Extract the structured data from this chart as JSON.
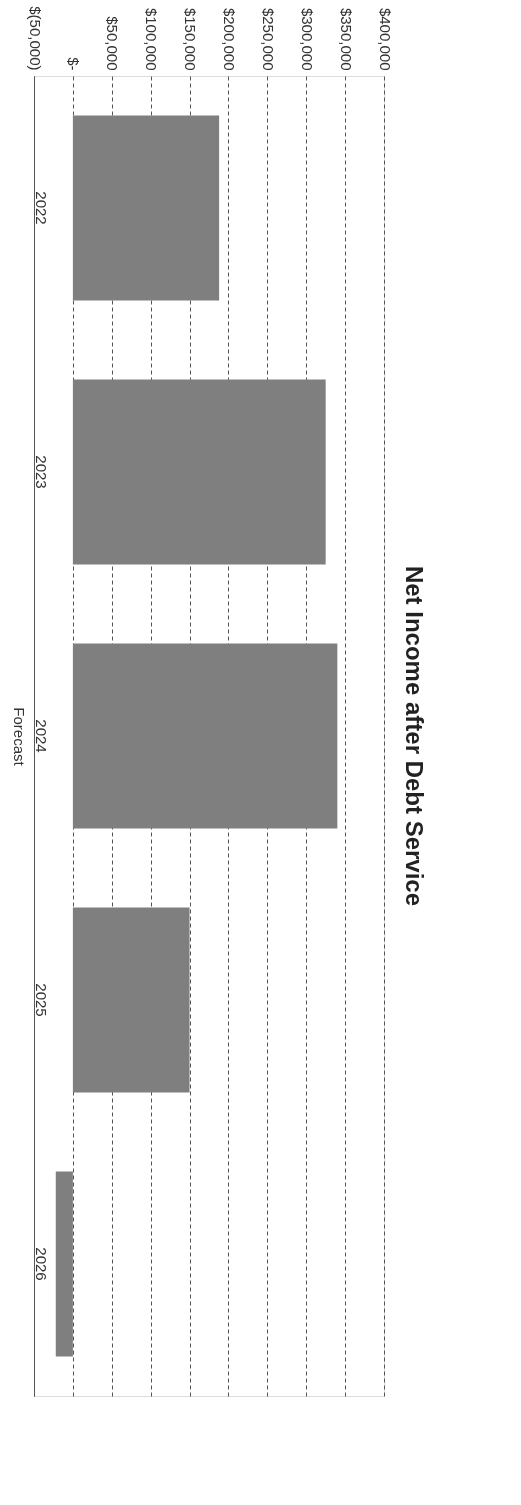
{
  "chart_data": {
    "type": "bar",
    "orientation": "horizontal",
    "title": "Net Income after Debt Service",
    "ylabel": "Forecast",
    "categories": [
      "2022",
      "2023",
      "2024",
      "2025",
      "2026"
    ],
    "values": [
      188000,
      325000,
      340000,
      150000,
      -22000
    ],
    "color": "#7f7f7f",
    "xlim": [
      -50000,
      400000
    ],
    "xticks": [
      {
        "value": -50000,
        "label": "$(50,000)"
      },
      {
        "value": 0,
        "label": "$-"
      },
      {
        "value": 50000,
        "label": "$50,000"
      },
      {
        "value": 100000,
        "label": "$100,000"
      },
      {
        "value": 150000,
        "label": "$150,000"
      },
      {
        "value": 200000,
        "label": "$200,000"
      },
      {
        "value": 250000,
        "label": "$250,000"
      },
      {
        "value": 300000,
        "label": "$300,000"
      },
      {
        "value": 350000,
        "label": "$350,000"
      },
      {
        "value": 400000,
        "label": "$400,000"
      }
    ],
    "grid": "x"
  }
}
